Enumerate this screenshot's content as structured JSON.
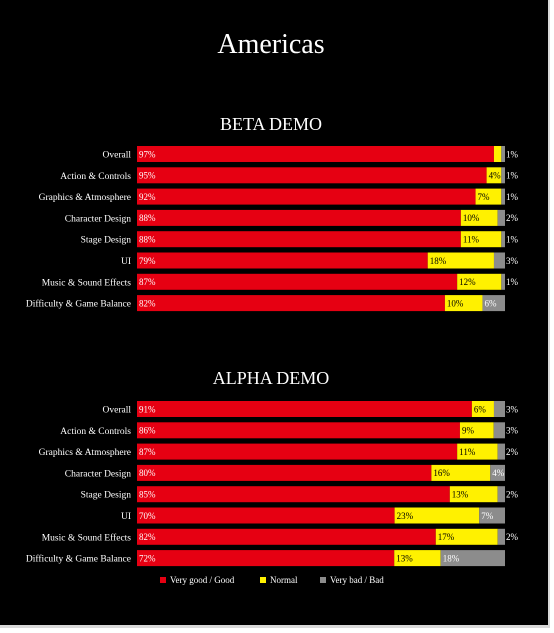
{
  "chart_data": {
    "type": "bar",
    "orientation": "horizontal-stacked",
    "title": "Americas",
    "colors": {
      "very_good": "#e60012",
      "normal": "#fff100",
      "very_bad": "#8c8c8c",
      "background": "#000000",
      "text": "#ffffff"
    },
    "legend": [
      "Very good / Good",
      "Normal",
      "Very bad / Bad"
    ],
    "legend_placement": "bottom",
    "panels": [
      {
        "title": "BETA DEMO",
        "categories": [
          "Overall",
          "Action & Controls",
          "Graphics & Atmosphere",
          "Character Design",
          "Stage Design",
          "UI",
          "Music & Sound Effects",
          "Difficulty & Game Balance"
        ],
        "series": [
          {
            "name": "Very good / Good",
            "values": [
              97,
              95,
              92,
              88,
              88,
              79,
              87,
              82
            ]
          },
          {
            "name": "Normal",
            "values": [
              2,
              4,
              7,
              10,
              11,
              18,
              12,
              10
            ]
          },
          {
            "name": "Very bad / Bad",
            "values": [
              1,
              1,
              1,
              2,
              1,
              3,
              1,
              6
            ]
          }
        ]
      },
      {
        "title": "ALPHA DEMO",
        "categories": [
          "Overall",
          "Action & Controls",
          "Graphics & Atmosphere",
          "Character Design",
          "Stage Design",
          "UI",
          "Music & Sound Effects",
          "Difficulty & Game Balance"
        ],
        "series": [
          {
            "name": "Very good / Good",
            "values": [
              91,
              86,
              87,
              80,
              85,
              70,
              82,
              72
            ]
          },
          {
            "name": "Normal",
            "values": [
              6,
              9,
              11,
              16,
              13,
              23,
              17,
              13
            ]
          },
          {
            "name": "Very bad / Bad",
            "values": [
              3,
              3,
              2,
              4,
              2,
              7,
              2,
              18
            ]
          }
        ]
      }
    ]
  }
}
